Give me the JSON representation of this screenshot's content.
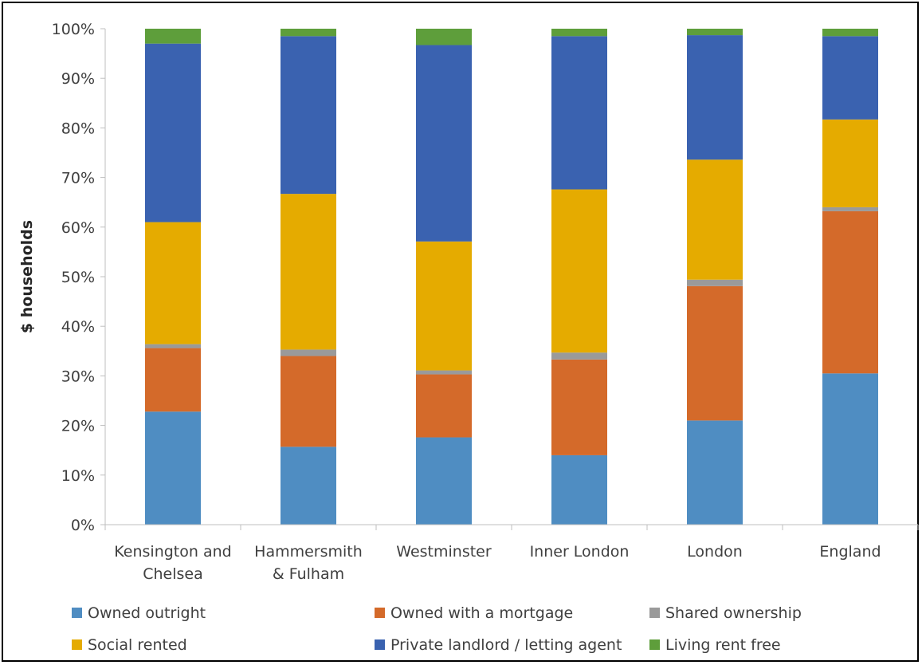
{
  "chart_data": {
    "type": "bar",
    "stacked": true,
    "ylabel": "$ households",
    "xlabel": "",
    "ylim": [
      0,
      100
    ],
    "y_ticks": [
      "0%",
      "10%",
      "20%",
      "30%",
      "40%",
      "50%",
      "60%",
      "70%",
      "80%",
      "90%",
      "100%"
    ],
    "categories": [
      [
        "Kensington and",
        "Chelsea"
      ],
      [
        "Hammersmith",
        "& Fulham"
      ],
      [
        "Westminster"
      ],
      [
        "Inner London"
      ],
      [
        "London"
      ],
      [
        "England"
      ]
    ],
    "series": [
      {
        "name": "Owned outright",
        "color": "#4f8dc2",
        "values": [
          22.8,
          15.7,
          17.6,
          14.0,
          21.0,
          30.5
        ]
      },
      {
        "name": "Owned with a mortgage",
        "color": "#d46a2a",
        "values": [
          12.8,
          18.3,
          12.7,
          19.3,
          27.1,
          32.7
        ]
      },
      {
        "name": "Shared ownership",
        "color": "#9a9a9a",
        "values": [
          0.8,
          1.3,
          0.8,
          1.4,
          1.3,
          0.8
        ]
      },
      {
        "name": "Social rented",
        "color": "#e5ab00",
        "values": [
          24.6,
          31.4,
          26.0,
          32.9,
          24.2,
          17.7
        ]
      },
      {
        "name": "Private landlord / letting agent",
        "color": "#3a62b0",
        "values": [
          36.0,
          31.8,
          39.6,
          30.9,
          25.1,
          16.8
        ]
      },
      {
        "name": "Living rent free",
        "color": "#5e9e3b",
        "values": [
          3.0,
          1.5,
          3.3,
          1.5,
          1.3,
          1.5
        ]
      }
    ],
    "legend_position": "bottom",
    "grid": false
  }
}
